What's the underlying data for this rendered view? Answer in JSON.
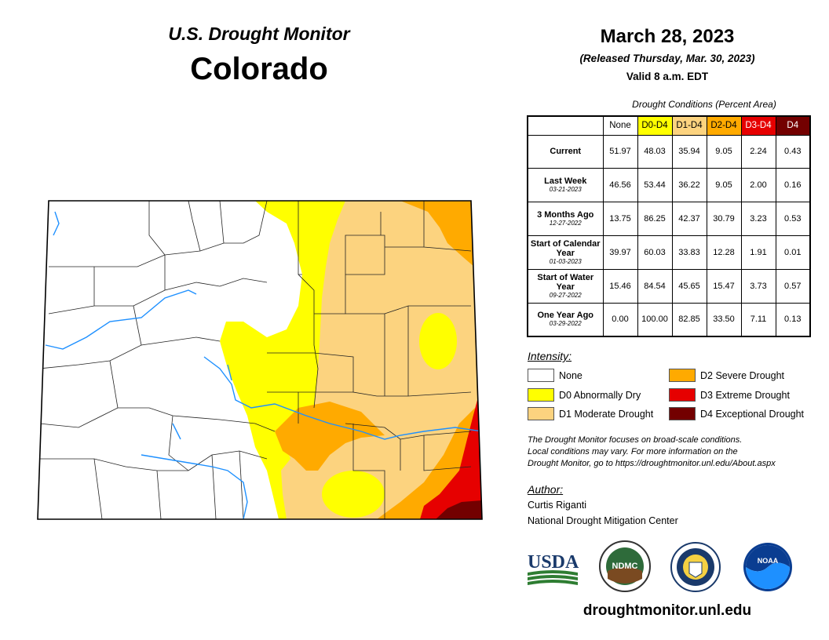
{
  "header": {
    "subtitle": "U.S. Drought Monitor",
    "state": "Colorado",
    "date": "March 28, 2023",
    "released": "(Released Thursday, Mar. 30, 2023)",
    "valid": "Valid 8 a.m. EDT"
  },
  "table": {
    "caption": "Drought Conditions (Percent Area)",
    "columns": [
      "None",
      "D0-D4",
      "D1-D4",
      "D2-D4",
      "D3-D4",
      "D4"
    ],
    "rows": [
      {
        "label": "Current",
        "date": "",
        "values": [
          "51.97",
          "48.03",
          "35.94",
          "9.05",
          "2.24",
          "0.43"
        ]
      },
      {
        "label": "Last Week",
        "date": "03-21-2023",
        "values": [
          "46.56",
          "53.44",
          "36.22",
          "9.05",
          "2.00",
          "0.16"
        ]
      },
      {
        "label": "3 Months Ago",
        "date": "12-27-2022",
        "values": [
          "13.75",
          "86.25",
          "42.37",
          "30.79",
          "3.23",
          "0.53"
        ]
      },
      {
        "label": "Start of Calendar Year",
        "date": "01-03-2023",
        "values": [
          "39.97",
          "60.03",
          "33.83",
          "12.28",
          "1.91",
          "0.01"
        ]
      },
      {
        "label": "Start of Water Year",
        "date": "09-27-2022",
        "values": [
          "15.46",
          "84.54",
          "45.65",
          "15.47",
          "3.73",
          "0.57"
        ]
      },
      {
        "label": "One Year Ago",
        "date": "03-29-2022",
        "values": [
          "0.00",
          "100.00",
          "82.85",
          "33.50",
          "7.11",
          "0.13"
        ]
      }
    ]
  },
  "legend": {
    "title": "Intensity:",
    "items": [
      {
        "label": "None",
        "color": "#ffffff"
      },
      {
        "label": "D0 Abnormally Dry",
        "color": "#ffff00"
      },
      {
        "label": "D1 Moderate Drought",
        "color": "#fcd37f"
      },
      {
        "label": "D2 Severe Drought",
        "color": "#ffaa00"
      },
      {
        "label": "D3 Extreme Drought",
        "color": "#e60000"
      },
      {
        "label": "D4 Exceptional Drought",
        "color": "#730000"
      }
    ]
  },
  "note": {
    "line1": "The Drought Monitor focuses on broad-scale conditions.",
    "line2": "Local conditions may vary. For more information on the",
    "line3": "Drought Monitor, go to https://droughtmonitor.unl.edu/About.aspx"
  },
  "author": {
    "label": "Author:",
    "name": "Curtis Riganti",
    "org": "National Drought Mitigation Center"
  },
  "logos": {
    "usda": "USDA",
    "ndmc": "NDMC",
    "noaa": "NOAA"
  },
  "colors": {
    "none": "#ffffff",
    "d0": "#ffff00",
    "d1": "#fcd37f",
    "d2": "#ffaa00",
    "d3": "#e60000",
    "d4": "#730000",
    "river": "#1e90ff"
  },
  "footer": {
    "url": "droughtmonitor.unl.edu"
  }
}
